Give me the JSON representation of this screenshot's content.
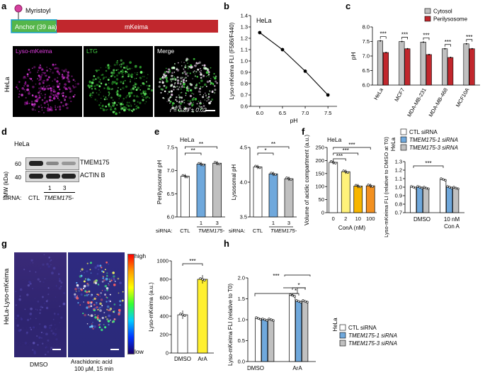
{
  "panels": {
    "a": {
      "letter": "a",
      "myristoyl": "Myristoyl",
      "anchor": "Anchor (39 aa)",
      "mkeima": "mKeima",
      "cell": "HeLa",
      "img_titles": [
        "Lyso-mKeima",
        "LTG",
        "Merge"
      ],
      "r_text": "r = 0.89 ± 0.02",
      "colors": {
        "anchor": "#55b64a",
        "mkeima_box": "#c1272d",
        "lyso": "#e03de0",
        "ltg": "#44d044",
        "myr": "#d6409f"
      }
    },
    "b": {
      "letter": "b",
      "cell": "HeLa"
    },
    "c": {
      "letter": "c"
    },
    "d": {
      "letter": "d",
      "cell": "HeLa",
      "mw_label": "MW (kDa)",
      "mw_60": "60",
      "mw_40": "40",
      "bands": [
        "TMEM175",
        "ACTIN B"
      ],
      "sirna": "siRNA:",
      "ctl": "CTL",
      "n1": "1",
      "n3": "3",
      "tmem": "TMEM175-"
    },
    "e": {
      "letter": "e"
    },
    "f": {
      "letter": "f"
    },
    "g": {
      "letter": "g",
      "side": "HeLa-Lyso-mKeima",
      "high": "high",
      "low": "low",
      "cond1": "DMSO",
      "cond2a": "Arachidonic acid",
      "cond2b": "100 µM, 15 min"
    },
    "h": {
      "letter": "h"
    }
  },
  "chart_data": [
    {
      "id": "b",
      "type": "line",
      "title": "HeLa",
      "xlabel": "pH",
      "ylabel": "Lyso-mKeima FLI (F586/F440)",
      "x": [
        6.0,
        6.5,
        7.0,
        7.5
      ],
      "y": [
        1.25,
        1.1,
        0.91,
        0.7
      ],
      "xlim": [
        5.8,
        7.7
      ],
      "ylim": [
        0.6,
        1.4
      ],
      "xticks": [
        "6.0",
        "6.5",
        "7.0",
        "7.5"
      ],
      "yticks": [
        "0.6",
        "0.7",
        "0.8",
        "0.9",
        "1.0",
        "1.1",
        "1.2",
        "1.3",
        "1.4"
      ]
    },
    {
      "id": "c",
      "type": "bar",
      "ylabel": "pH",
      "ylim": [
        6.0,
        8.0
      ],
      "yticks": [
        "6.0",
        "6.5",
        "7.0",
        "7.5",
        "8.0"
      ],
      "categories": [
        "HeLa",
        "MCF7",
        "MDA-MB-231",
        "MDA-MB-468",
        "MCF10A"
      ],
      "series": [
        {
          "name": "Cytosol",
          "color": "#c0c0c0",
          "values": [
            7.52,
            7.5,
            7.48,
            7.25,
            7.42
          ]
        },
        {
          "name": "Perilysosome",
          "color": "#c1272d",
          "values": [
            7.12,
            7.25,
            7.05,
            6.95,
            7.25
          ]
        }
      ],
      "sig": [
        "***",
        "***",
        "***",
        "***",
        "***"
      ],
      "legend": "top-right"
    },
    {
      "id": "e1",
      "type": "bar",
      "title": "HeLa",
      "ylabel": "Perilysosomal pH",
      "ylim": [
        6.0,
        7.5
      ],
      "yticks": [
        "6.0",
        "6.5",
        "7.0",
        "7.5"
      ],
      "categories": [
        "CTL",
        "1",
        "3"
      ],
      "values": [
        6.88,
        7.14,
        7.16
      ],
      "colors": [
        "#ffffff",
        "#6fa8dc",
        "#c0c0c0"
      ],
      "sig": [
        "**",
        "**"
      ],
      "xlabel_prefix": "siRNA:",
      "group": "TMEM175-"
    },
    {
      "id": "e2",
      "type": "bar",
      "ylabel": "Lysosomal pH",
      "ylim": [
        3.5,
        4.5
      ],
      "yticks": [
        "3.5",
        "4.0",
        "4.5"
      ],
      "categories": [
        "CTL",
        "1",
        "3"
      ],
      "values": [
        4.22,
        4.12,
        4.05
      ],
      "colors": [
        "#ffffff",
        "#6fa8dc",
        "#c0c0c0"
      ],
      "sig": [
        "*",
        "**"
      ],
      "xlabel_prefix": "siRNA:",
      "group": "TMEM175-"
    },
    {
      "id": "f1",
      "type": "bar",
      "title": "HeLa",
      "ylabel": "Volume of acidic compartment (a.u.)",
      "xlabel": "ConA (nM)",
      "ylim": [
        0,
        250
      ],
      "yticks": [
        "0",
        "50",
        "100",
        "150",
        "200",
        "250"
      ],
      "categories": [
        "0",
        "2",
        "10",
        "100"
      ],
      "values": [
        193,
        157,
        102,
        103
      ],
      "colors": [
        "#ffffff",
        "#fff27a",
        "#f7b500",
        "#f29020"
      ],
      "sig": [
        "***",
        "***",
        "***"
      ]
    },
    {
      "id": "f2",
      "type": "bar",
      "side_label": "HeLa",
      "ylabel": "Lyso-mKeima FLI (relative to DMSO at T0)",
      "ylim": [
        0.7,
        1.3
      ],
      "yticks": [
        "0.7",
        "0.8",
        "0.9",
        "1.0",
        "1.1",
        "1.2",
        "1.3"
      ],
      "categories": [
        "DMSO",
        "10 nM Con A"
      ],
      "series": [
        {
          "name": "CTL siRNA",
          "color": "#ffffff",
          "values": [
            1.0,
            1.09
          ]
        },
        {
          "name": "TMEM175-1 siRNA",
          "color": "#6fa8dc",
          "values": [
            1.0,
            1.0
          ]
        },
        {
          "name": "TMEM175-3 siRNA",
          "color": "#c0c0c0",
          "values": [
            0.99,
            0.99
          ]
        }
      ],
      "sig": [
        "***"
      ],
      "legend": "top"
    },
    {
      "id": "g",
      "type": "bar",
      "ylabel": "Lyso-mKeima (a.u.)",
      "ylim": [
        0,
        1000
      ],
      "yticks": [
        "0",
        "200",
        "400",
        "600",
        "800",
        "1000"
      ],
      "categories": [
        "DMSO",
        "ArA"
      ],
      "values": [
        415,
        800
      ],
      "colors": [
        "#ffffff",
        "#fff030"
      ],
      "sig": [
        "***"
      ]
    },
    {
      "id": "h",
      "type": "bar",
      "ylabel": "Lyso-mKeima FLI (relative to T0)",
      "ylim": [
        0.0,
        2.0
      ],
      "yticks": [
        "0.0",
        "0.5",
        "1.0",
        "1.5",
        "2.0"
      ],
      "categories": [
        "DMSO",
        "ArA"
      ],
      "series": [
        {
          "name": "CTL siRNA",
          "color": "#ffffff",
          "values": [
            1.03,
            1.58
          ]
        },
        {
          "name": "TMEM175-1 siRNA",
          "color": "#6fa8dc",
          "values": [
            1.0,
            1.44
          ]
        },
        {
          "name": "TMEM175-3 siRNA",
          "color": "#c0c0c0",
          "values": [
            1.0,
            1.44
          ]
        }
      ],
      "sig": [
        "***",
        "*",
        "*"
      ],
      "side_label": "HeLa",
      "legend": "right"
    }
  ]
}
